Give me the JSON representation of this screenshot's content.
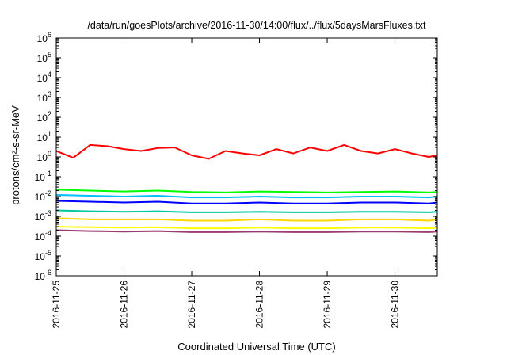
{
  "chart_data": {
    "type": "line",
    "title": "/data/run/goesPlots/archive/2016-11-30/14:00/flux/../flux/5daysMarsFluxes.txt",
    "xlabel": "Coordinated Universal Time (UTC)",
    "ylabel": "protons/cm²-s-sr-MeV",
    "yscale": "log",
    "ylim": [
      1e-06,
      1000000.0
    ],
    "xlim": [
      "2016-11-25 00:00",
      "2016-11-30 15:00"
    ],
    "x_ticks": [
      "2016-11-25",
      "2016-11-26",
      "2016-11-27",
      "2016-11-28",
      "2016-11-29",
      "2016-11-30"
    ],
    "y_ticks": [
      {
        "base": "10",
        "exp": "-6"
      },
      {
        "base": "10",
        "exp": "-5"
      },
      {
        "base": "10",
        "exp": "-4"
      },
      {
        "base": "10",
        "exp": "-3"
      },
      {
        "base": "10",
        "exp": "-2"
      },
      {
        "base": "10",
        "exp": "-1"
      },
      {
        "base": "10",
        "exp": "0"
      },
      {
        "base": "10",
        "exp": "1"
      },
      {
        "base": "10",
        "exp": "2"
      },
      {
        "base": "10",
        "exp": "3"
      },
      {
        "base": "10",
        "exp": "4"
      },
      {
        "base": "10",
        "exp": "5"
      },
      {
        "base": "10",
        "exp": "6"
      }
    ],
    "grid": false,
    "legend": "none",
    "series": [
      {
        "color": "#ff0000",
        "x_hours": [
          0,
          6,
          12,
          18,
          24,
          30,
          36,
          42,
          48,
          54,
          60,
          66,
          72,
          78,
          84,
          90,
          96,
          102,
          108,
          114,
          120,
          126,
          132,
          135
        ],
        "values": [
          2.0,
          0.9,
          4.0,
          3.5,
          2.5,
          2.0,
          2.8,
          3.0,
          1.2,
          0.8,
          2.0,
          1.5,
          1.2,
          2.5,
          1.5,
          3.0,
          2.0,
          4.0,
          2.0,
          1.5,
          2.5,
          1.5,
          1.0,
          1.2
        ]
      },
      {
        "color": "#00ff00",
        "x_hours": [
          0,
          12,
          24,
          36,
          48,
          60,
          72,
          84,
          96,
          108,
          120,
          132,
          135
        ],
        "values": [
          0.022,
          0.02,
          0.018,
          0.02,
          0.017,
          0.016,
          0.018,
          0.017,
          0.016,
          0.017,
          0.018,
          0.016,
          0.017
        ]
      },
      {
        "color": "#00bfff",
        "x_hours": [
          0,
          12,
          24,
          36,
          48,
          60,
          72,
          84,
          96,
          108,
          120,
          132,
          135
        ],
        "values": [
          0.012,
          0.011,
          0.01,
          0.011,
          0.009,
          0.009,
          0.01,
          0.009,
          0.009,
          0.01,
          0.01,
          0.009,
          0.01
        ]
      },
      {
        "color": "#0000ff",
        "x_hours": [
          0,
          12,
          24,
          36,
          48,
          60,
          72,
          84,
          96,
          108,
          120,
          132,
          135
        ],
        "values": [
          0.006,
          0.0055,
          0.005,
          0.0055,
          0.0045,
          0.0045,
          0.005,
          0.0045,
          0.0045,
          0.005,
          0.005,
          0.0045,
          0.005
        ]
      },
      {
        "color": "#00c8a0",
        "x_hours": [
          0,
          12,
          24,
          36,
          48,
          60,
          72,
          84,
          96,
          108,
          120,
          132,
          135
        ],
        "values": [
          0.002,
          0.0018,
          0.0017,
          0.0018,
          0.0016,
          0.0016,
          0.0017,
          0.0016,
          0.0016,
          0.0017,
          0.0017,
          0.0016,
          0.0017
        ]
      },
      {
        "color": "#ffd700",
        "x_hours": [
          0,
          12,
          24,
          36,
          48,
          60,
          72,
          84,
          96,
          108,
          120,
          132,
          135
        ],
        "values": [
          0.0008,
          0.0007,
          0.0007,
          0.0007,
          0.0006,
          0.0006,
          0.0007,
          0.0006,
          0.0006,
          0.0007,
          0.0007,
          0.0006,
          0.0007
        ]
      },
      {
        "color": "#ffff00",
        "x_hours": [
          0,
          12,
          24,
          36,
          48,
          60,
          72,
          84,
          96,
          108,
          120,
          132,
          135
        ],
        "values": [
          0.0003,
          0.00028,
          0.00027,
          0.00028,
          0.00025,
          0.00025,
          0.00027,
          0.00025,
          0.00025,
          0.00027,
          0.00027,
          0.00025,
          0.00027
        ]
      },
      {
        "color": "#9b3a6e",
        "x_hours": [
          0,
          12,
          24,
          36,
          48,
          60,
          72,
          84,
          96,
          108,
          120,
          132,
          135
        ],
        "values": [
          0.0002,
          0.00018,
          0.00017,
          0.00018,
          0.00016,
          0.00016,
          0.00017,
          0.00016,
          0.00016,
          0.00017,
          0.00017,
          0.00016,
          0.00017
        ]
      }
    ]
  }
}
